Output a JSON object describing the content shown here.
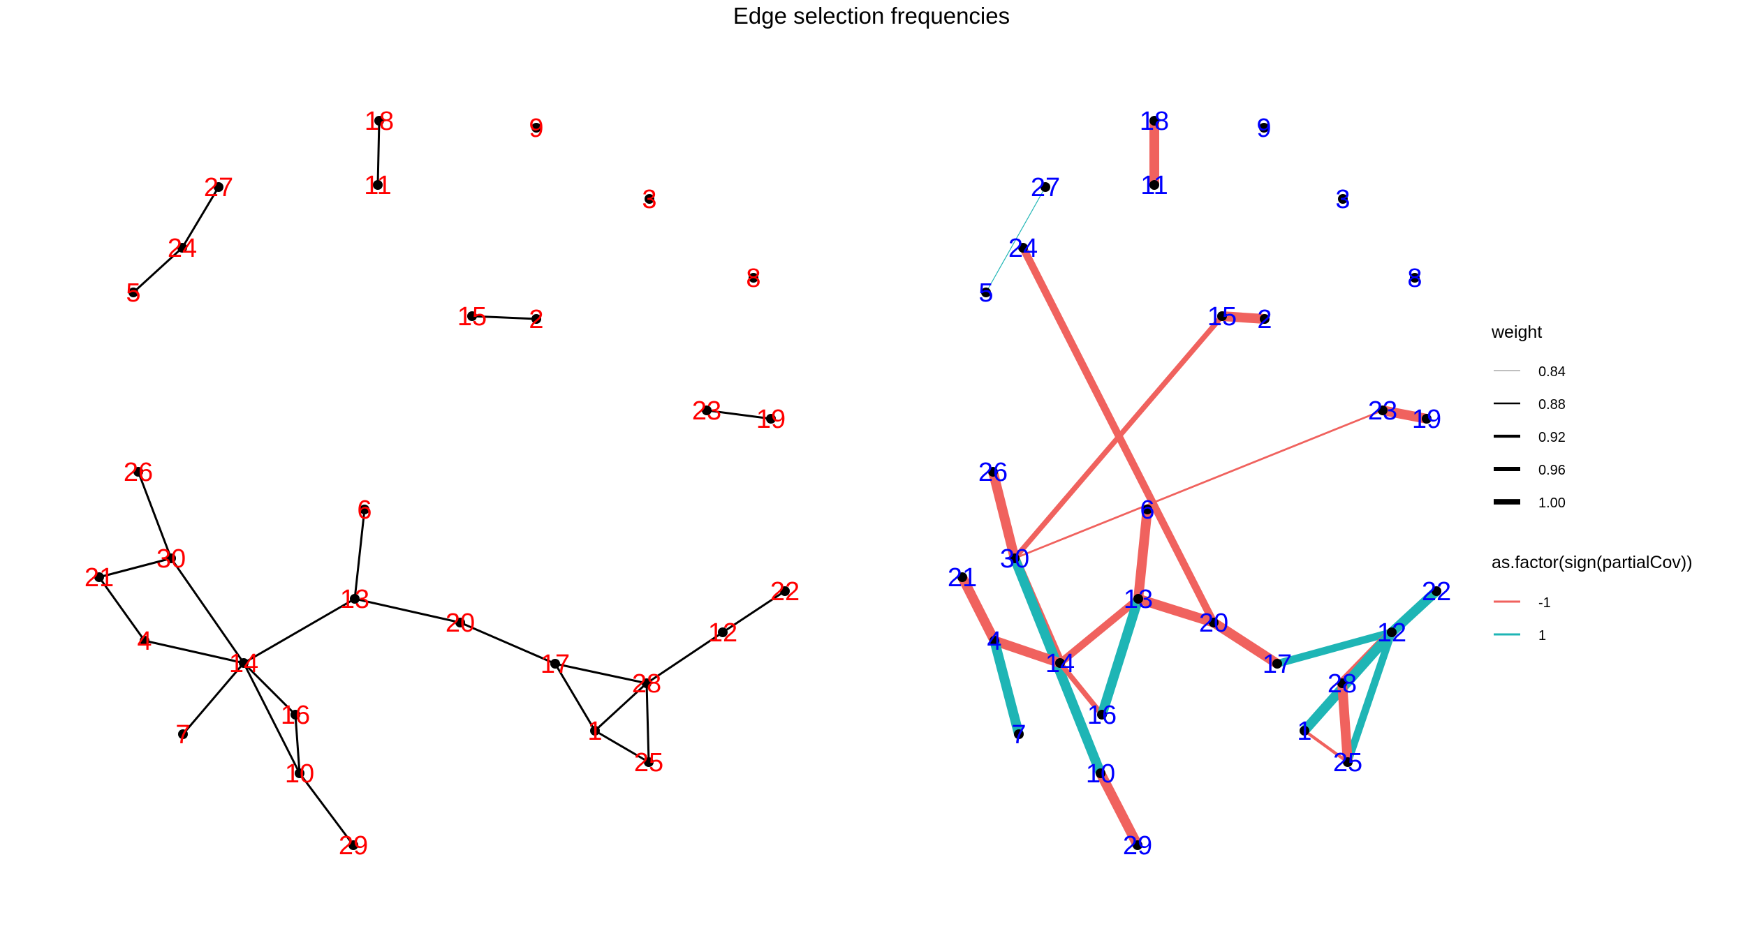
{
  "title": "Edge selection frequencies",
  "colors": {
    "left_label": "#ff0000",
    "right_label": "#0000ff",
    "left_edge": "#000000",
    "negative": "#f0625e",
    "positive": "#1eb5b5",
    "node": "#000000"
  },
  "nodes": [
    "1",
    "2",
    "3",
    "4",
    "5",
    "6",
    "7",
    "8",
    "9",
    "10",
    "11",
    "12",
    "13",
    "14",
    "15",
    "16",
    "17",
    "18",
    "19",
    "20",
    "21",
    "22",
    "23",
    "24",
    "25",
    "26",
    "27",
    "28",
    "29",
    "30"
  ],
  "left_graph": {
    "edges": [
      {
        "from": "18",
        "to": "11",
        "weight": 0.88
      },
      {
        "from": "27",
        "to": "24",
        "weight": 0.88
      },
      {
        "from": "24",
        "to": "5",
        "weight": 0.88
      },
      {
        "from": "15",
        "to": "2",
        "weight": 0.88
      },
      {
        "from": "23",
        "to": "19",
        "weight": 0.88
      },
      {
        "from": "26",
        "to": "30",
        "weight": 0.88
      },
      {
        "from": "30",
        "to": "21",
        "weight": 0.88
      },
      {
        "from": "21",
        "to": "4",
        "weight": 0.88
      },
      {
        "from": "4",
        "to": "14",
        "weight": 0.88
      },
      {
        "from": "30",
        "to": "14",
        "weight": 0.88
      },
      {
        "from": "14",
        "to": "7",
        "weight": 0.88
      },
      {
        "from": "14",
        "to": "13",
        "weight": 0.88
      },
      {
        "from": "14",
        "to": "16",
        "weight": 0.88
      },
      {
        "from": "14",
        "to": "10",
        "weight": 0.88
      },
      {
        "from": "16",
        "to": "10",
        "weight": 0.88
      },
      {
        "from": "10",
        "to": "29",
        "weight": 0.88
      },
      {
        "from": "13",
        "to": "6",
        "weight": 0.88
      },
      {
        "from": "13",
        "to": "20",
        "weight": 0.88
      },
      {
        "from": "20",
        "to": "17",
        "weight": 0.88
      },
      {
        "from": "17",
        "to": "28",
        "weight": 0.88
      },
      {
        "from": "17",
        "to": "1",
        "weight": 0.88
      },
      {
        "from": "1",
        "to": "28",
        "weight": 0.88
      },
      {
        "from": "1",
        "to": "25",
        "weight": 0.88
      },
      {
        "from": "28",
        "to": "25",
        "weight": 0.88
      },
      {
        "from": "28",
        "to": "12",
        "weight": 0.88
      },
      {
        "from": "12",
        "to": "22",
        "weight": 0.88
      }
    ]
  },
  "right_graph": {
    "edges": [
      {
        "from": "18",
        "to": "11",
        "weight": 1.0,
        "sign": -1
      },
      {
        "from": "27",
        "to": "5",
        "weight": 0.84,
        "sign": 1
      },
      {
        "from": "15",
        "to": "2",
        "weight": 1.0,
        "sign": -1
      },
      {
        "from": "23",
        "to": "19",
        "weight": 1.0,
        "sign": -1
      },
      {
        "from": "24",
        "to": "20",
        "weight": 0.96,
        "sign": -1
      },
      {
        "from": "30",
        "to": "15",
        "weight": 0.92,
        "sign": -1
      },
      {
        "from": "30",
        "to": "23",
        "weight": 0.86,
        "sign": -1
      },
      {
        "from": "26",
        "to": "30",
        "weight": 1.0,
        "sign": -1
      },
      {
        "from": "30",
        "to": "14",
        "weight": 1.0,
        "sign": -1
      },
      {
        "from": "30",
        "to": "10",
        "weight": 1.0,
        "sign": 1
      },
      {
        "from": "21",
        "to": "4",
        "weight": 1.0,
        "sign": -1
      },
      {
        "from": "4",
        "to": "14",
        "weight": 1.0,
        "sign": -1
      },
      {
        "from": "4",
        "to": "7",
        "weight": 1.0,
        "sign": 1
      },
      {
        "from": "14",
        "to": "16",
        "weight": 0.92,
        "sign": -1
      },
      {
        "from": "14",
        "to": "13",
        "weight": 0.96,
        "sign": -1
      },
      {
        "from": "13",
        "to": "16",
        "weight": 1.0,
        "sign": 1
      },
      {
        "from": "13",
        "to": "6",
        "weight": 1.0,
        "sign": -1
      },
      {
        "from": "13",
        "to": "20",
        "weight": 1.0,
        "sign": -1
      },
      {
        "from": "20",
        "to": "17",
        "weight": 1.0,
        "sign": -1
      },
      {
        "from": "10",
        "to": "29",
        "weight": 1.0,
        "sign": -1
      },
      {
        "from": "17",
        "to": "12",
        "weight": 0.96,
        "sign": 1
      },
      {
        "from": "12",
        "to": "22",
        "weight": 1.0,
        "sign": 1
      },
      {
        "from": "12",
        "to": "28",
        "weight": 1.0,
        "sign": -1
      },
      {
        "from": "12",
        "to": "1",
        "weight": 1.0,
        "sign": 1
      },
      {
        "from": "12",
        "to": "25",
        "weight": 0.96,
        "sign": 1
      },
      {
        "from": "28",
        "to": "25",
        "weight": 1.0,
        "sign": -1
      },
      {
        "from": "1",
        "to": "25",
        "weight": 0.88,
        "sign": -1
      }
    ]
  },
  "legend": {
    "weight": {
      "title": "weight",
      "items": [
        {
          "label": "0.84",
          "value": 0.84
        },
        {
          "label": "0.88",
          "value": 0.88
        },
        {
          "label": "0.92",
          "value": 0.92
        },
        {
          "label": "0.96",
          "value": 0.96
        },
        {
          "label": "1.00",
          "value": 1.0
        }
      ]
    },
    "sign": {
      "title": "as.factor(sign(partialCov))",
      "items": [
        {
          "label": "-1",
          "color": "#f0625e"
        },
        {
          "label": "1",
          "color": "#1eb5b5"
        }
      ]
    }
  }
}
